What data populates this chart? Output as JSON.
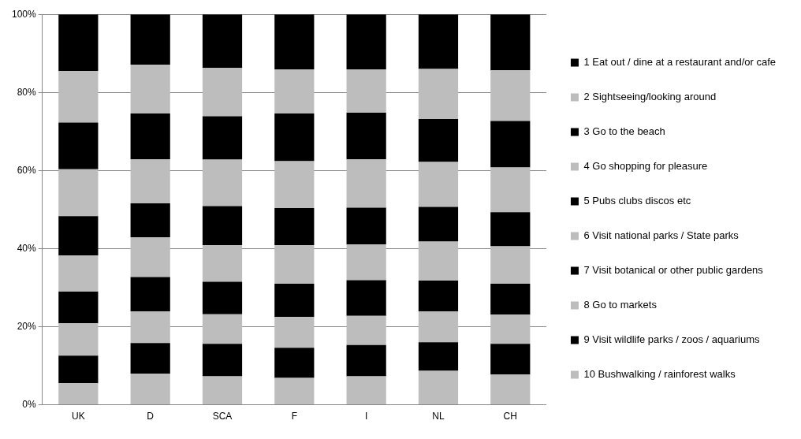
{
  "chart_data": {
    "type": "bar",
    "stacked": true,
    "categories": [
      "UK",
      "D",
      "SCA",
      "F",
      "I",
      "NL",
      "CH"
    ],
    "series": [
      {
        "name": "10 Bushwalking / rainforest walks",
        "color": "#bdbdbd",
        "values": [
          5.5,
          8.0,
          7.3,
          6.9,
          7.3,
          8.7,
          7.8
        ]
      },
      {
        "name": "9 Visit wildlife parks / zoos / aquariums",
        "color": "#000000",
        "values": [
          7.1,
          7.8,
          8.3,
          7.7,
          8.0,
          7.3,
          7.8
        ]
      },
      {
        "name": "8 Go to markets",
        "color": "#bdbdbd",
        "values": [
          8.3,
          8.1,
          7.6,
          7.9,
          7.5,
          7.9,
          7.5
        ]
      },
      {
        "name": "7 Visit botanical or other public gardens",
        "color": "#000000",
        "values": [
          8.1,
          8.8,
          8.3,
          8.5,
          9.1,
          7.9,
          7.9
        ]
      },
      {
        "name": "6 Visit national parks / State parks",
        "color": "#bdbdbd",
        "values": [
          9.2,
          10.2,
          9.4,
          9.9,
          9.2,
          10.0,
          9.6
        ]
      },
      {
        "name": "5 Pubs clubs discos etc",
        "color": "#000000",
        "values": [
          10.1,
          8.7,
          10.0,
          9.5,
          9.4,
          8.9,
          8.7
        ]
      },
      {
        "name": "4 Go shopping for pleasure",
        "color": "#bdbdbd",
        "values": [
          12.0,
          11.3,
          11.9,
          12.0,
          12.4,
          11.5,
          11.5
        ]
      },
      {
        "name": "3 Go to the beach",
        "color": "#000000",
        "values": [
          12.0,
          11.7,
          11.1,
          12.2,
          11.9,
          11.0,
          11.9
        ]
      },
      {
        "name": "2 Sightseeing/looking around",
        "color": "#bdbdbd",
        "values": [
          13.2,
          12.5,
          12.4,
          11.3,
          11.1,
          12.8,
          13.0
        ]
      },
      {
        "name": "1 Eat out / dine at a restaurant and/or cafe",
        "color": "#000000",
        "values": [
          14.5,
          12.9,
          13.7,
          14.1,
          14.1,
          14.0,
          14.3
        ]
      }
    ],
    "ylim": [
      0,
      100
    ],
    "yticks": [
      {
        "value": 0,
        "label": "0%"
      },
      {
        "value": 20,
        "label": "20%"
      },
      {
        "value": 40,
        "label": "40%"
      },
      {
        "value": 60,
        "label": "60%"
      },
      {
        "value": 80,
        "label": "80%"
      },
      {
        "value": 100,
        "label": "100%"
      }
    ],
    "grid": "y",
    "legend": "right"
  }
}
